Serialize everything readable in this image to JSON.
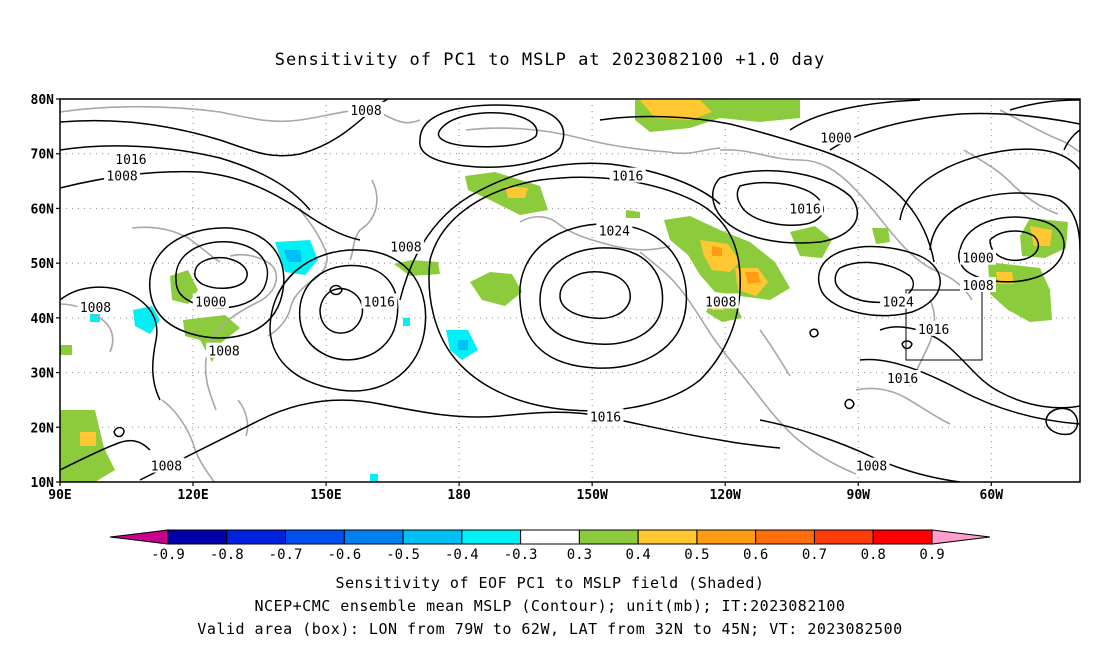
{
  "title": "Sensitivity of PC1 to MSLP at 2023082100 +1.0 day",
  "captions": {
    "line1": "Sensitivity of EOF PC1 to MSLP field (Shaded)",
    "line2": "NCEP+CMC ensemble mean MSLP (Contour); unit(mb); IT:2023082100",
    "line3": "Valid area (box): LON from 79W to 62W, LAT from 32N to 45N; VT: 2023082500"
  },
  "axes": {
    "lat_labels": [
      "80N",
      "70N",
      "60N",
      "50N",
      "40N",
      "30N",
      "20N",
      "10N"
    ],
    "lon_labels": [
      "90E",
      "120E",
      "150E",
      "180",
      "150W",
      "120W",
      "90W",
      "60W"
    ]
  },
  "colorbar": {
    "labels": [
      "-0.9",
      "-0.8",
      "-0.7",
      "-0.6",
      "-0.5",
      "-0.4",
      "-0.3",
      "0.3",
      "0.4",
      "0.5",
      "0.6",
      "0.7",
      "0.8",
      "0.9"
    ],
    "colors": [
      "#c8008c",
      "#0000aa",
      "#0022dd",
      "#0050f0",
      "#0080f0",
      "#00bff5",
      "#00f0f5",
      "#ffffff",
      "#8ccc3c",
      "#ffc832",
      "#ff9b14",
      "#ff6e0a",
      "#ff3c0a",
      "#ff0000",
      "#ff9ecf"
    ]
  },
  "contour_labels": [
    {
      "text": "1008",
      "lon": 159,
      "lat": 78
    },
    {
      "text": "1016",
      "lon": 106,
      "lat": 69
    },
    {
      "text": "1008",
      "lon": 104,
      "lat": 66
    },
    {
      "text": "1016",
      "lon": -142,
      "lat": 66
    },
    {
      "text": "1016",
      "lon": -102,
      "lat": 60
    },
    {
      "text": "1000",
      "lon": -95,
      "lat": 73
    },
    {
      "text": "1024",
      "lon": -145,
      "lat": 56
    },
    {
      "text": "1008",
      "lon": 168,
      "lat": 53
    },
    {
      "text": "1000",
      "lon": -63,
      "lat": 51
    },
    {
      "text": "1008",
      "lon": -63,
      "lat": 46
    },
    {
      "text": "1008",
      "lon": -121,
      "lat": 43
    },
    {
      "text": "1024",
      "lon": -81,
      "lat": 43
    },
    {
      "text": "1016",
      "lon": -73,
      "lat": 38
    },
    {
      "text": "1008",
      "lon": 98,
      "lat": 42
    },
    {
      "text": "1000",
      "lon": 124,
      "lat": 43
    },
    {
      "text": "1016",
      "lon": 162,
      "lat": 43
    },
    {
      "text": "1008",
      "lon": 127,
      "lat": 34
    },
    {
      "text": "1016",
      "lon": -80,
      "lat": 29
    },
    {
      "text": "1016",
      "lon": -147,
      "lat": 22
    },
    {
      "text": "1008",
      "lon": 114,
      "lat": 13
    },
    {
      "text": "1008",
      "lon": -87,
      "lat": 13
    }
  ]
}
